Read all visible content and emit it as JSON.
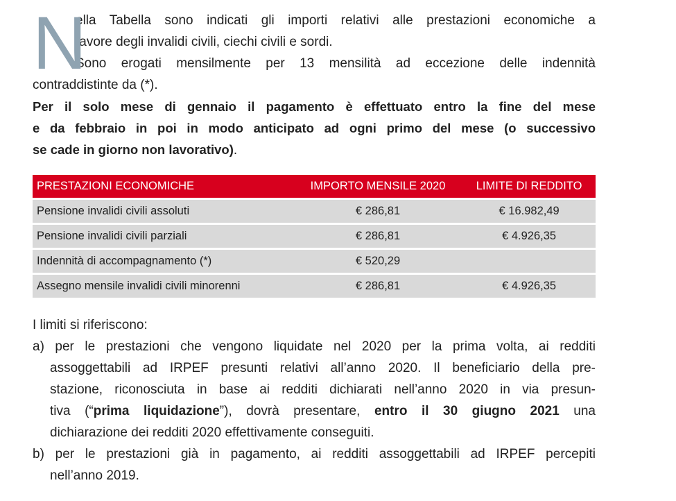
{
  "intro": {
    "dropcap": "N",
    "lines": [
      "ella Tabella sono indicati gli importi relativi alle prestazioni economiche a",
      "favore degli invalidi civili, ciechi civili e sordi.",
      "Sono erogati mensilmente per 13 mensilità ad eccezione delle indennità",
      "contraddistinte da (*)."
    ],
    "bold_lines": [
      "Per il solo mese di gennaio il pagamento è effettuato entro la fine del mese",
      "e da febbraio in poi in modo anticipato ad ogni primo del mese (o successivo",
      "se cade in giorno non lavorativo)"
    ],
    "bold_tail": "."
  },
  "table": {
    "headers": [
      "PRESTAZIONI ECONOMICHE",
      "IMPORTO MENSILE 2020",
      "LIMITE DI REDDITO"
    ],
    "rows": [
      [
        "Pensione invalidi civili assoluti",
        "€ 286,81",
        "€ 16.982,49"
      ],
      [
        "Pensione invalidi civili parziali",
        "€ 286,81",
        "€ 4.926,35"
      ],
      [
        "Indennità di accompagnamento (*)",
        "€ 520,29",
        ""
      ],
      [
        "Assegno mensile invalidi civili minorenni",
        "€ 286,81",
        "€ 4.926,35"
      ]
    ],
    "header_color": "#d7001e",
    "row_color": "#d9d9d9"
  },
  "notes": {
    "title": "I limiti si riferiscono:",
    "a": {
      "lines": [
        "a) per le prestazioni che vengono liquidate nel 2020 per la prima volta, ai redditi",
        "assoggettabili ad IRPEF presunti relativi all’anno 2020. Il beneficiario della pre-",
        "stazione, riconosciuta in base ai redditi dichiarati nell’anno 2020 in via presun-"
      ],
      "mixed": [
        "tiva (“",
        "prima liquidazione",
        "”), dovrà presentare, ",
        "entro il 30 giugno 2021",
        " una"
      ],
      "last": "dichiarazione dei redditi 2020 effettivamente conseguiti."
    },
    "b": {
      "lines": [
        "b) per le prestazioni già in pagamento, ai redditi assoggettabili ad IRPEF percepiti",
        "nell’anno 2019."
      ]
    }
  }
}
